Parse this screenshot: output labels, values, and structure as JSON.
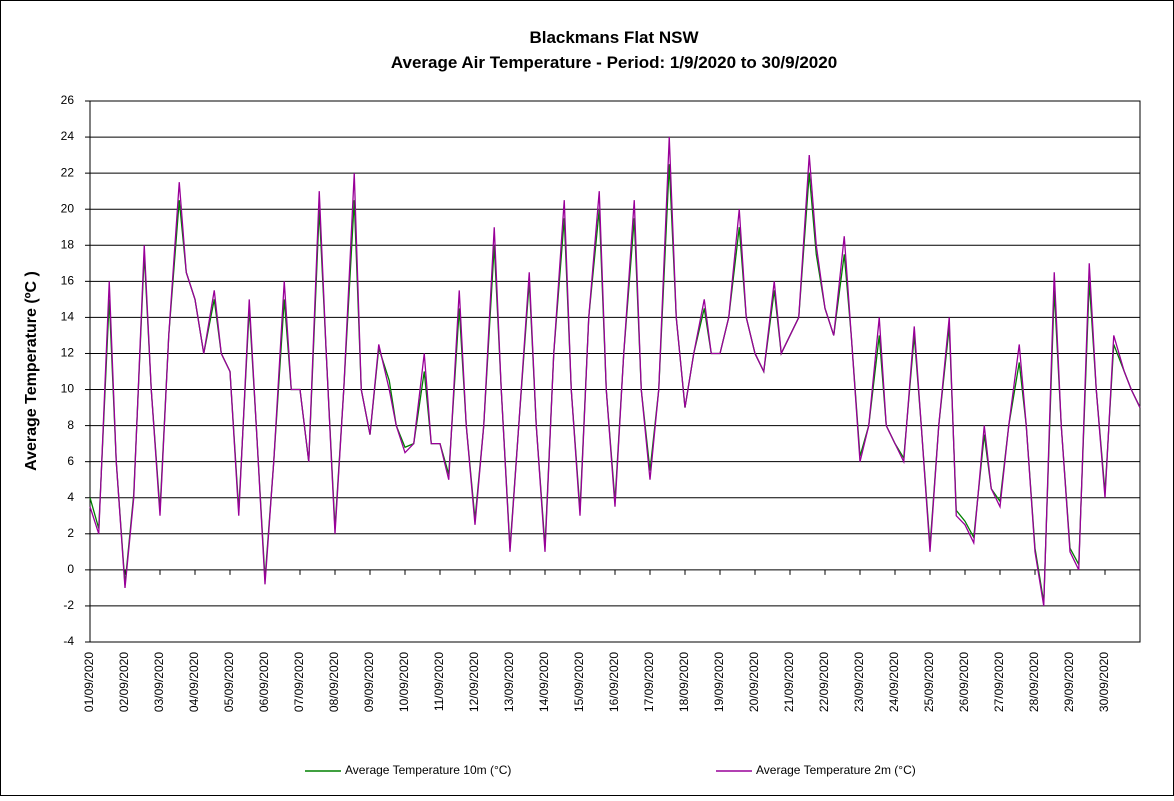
{
  "chart_data": {
    "type": "line",
    "title": "Blackmans Flat NSW",
    "subtitle": "Average Air  Temperature - Period: 1/9/2020 to 30/9/2020",
    "y_label": "Average Temperature (ºC )",
    "grid": true,
    "legend": "bottom",
    "xlim": [
      0,
      30
    ],
    "xticks": [
      {
        "value": 0,
        "label": "01/09/2020"
      },
      {
        "value": 1,
        "label": "02/09/2020"
      },
      {
        "value": 2,
        "label": "03/09/2020"
      },
      {
        "value": 3,
        "label": "04/09/2020"
      },
      {
        "value": 4,
        "label": "05/09/2020"
      },
      {
        "value": 5,
        "label": "06/09/2020"
      },
      {
        "value": 6,
        "label": "07/09/2020"
      },
      {
        "value": 7,
        "label": "08/09/2020"
      },
      {
        "value": 8,
        "label": "09/09/2020"
      },
      {
        "value": 9,
        "label": "10/09/2020"
      },
      {
        "value": 10,
        "label": "11/09/2020"
      },
      {
        "value": 11,
        "label": "12/09/2020"
      },
      {
        "value": 12,
        "label": "13/09/2020"
      },
      {
        "value": 13,
        "label": "14/09/2020"
      },
      {
        "value": 14,
        "label": "15/09/2020"
      },
      {
        "value": 15,
        "label": "16/09/2020"
      },
      {
        "value": 16,
        "label": "17/09/2020"
      },
      {
        "value": 17,
        "label": "18/09/2020"
      },
      {
        "value": 18,
        "label": "19/09/2020"
      },
      {
        "value": 19,
        "label": "20/09/2020"
      },
      {
        "value": 20,
        "label": "21/09/2020"
      },
      {
        "value": 21,
        "label": "22/09/2020"
      },
      {
        "value": 22,
        "label": "23/09/2020"
      },
      {
        "value": 23,
        "label": "24/09/2020"
      },
      {
        "value": 24,
        "label": "25/09/2020"
      },
      {
        "value": 25,
        "label": "26/09/2020"
      },
      {
        "value": 26,
        "label": "27/09/2020"
      },
      {
        "value": 27,
        "label": "28/09/2020"
      },
      {
        "value": 28,
        "label": "29/09/2020"
      },
      {
        "value": 29,
        "label": "30/09/2020"
      }
    ],
    "ylim": [
      -4,
      26
    ],
    "yticks": [
      -4,
      -2,
      0,
      2,
      4,
      6,
      8,
      10,
      12,
      14,
      16,
      18,
      20,
      22,
      24,
      26
    ],
    "x": [
      0,
      0.25,
      0.55,
      0.75,
      1,
      1.25,
      1.55,
      1.75,
      2,
      2.25,
      2.55,
      2.75,
      3,
      3.25,
      3.55,
      3.75,
      4,
      4.25,
      4.55,
      4.75,
      5,
      5.25,
      5.55,
      5.75,
      6,
      6.25,
      6.55,
      6.75,
      7,
      7.25,
      7.55,
      7.75,
      8,
      8.25,
      8.55,
      8.75,
      9,
      9.25,
      9.55,
      9.75,
      10,
      10.25,
      10.55,
      10.75,
      11,
      11.25,
      11.55,
      11.75,
      12,
      12.25,
      12.55,
      12.75,
      13,
      13.25,
      13.55,
      13.75,
      14,
      14.25,
      14.55,
      14.75,
      15,
      15.25,
      15.55,
      15.75,
      16,
      16.25,
      16.55,
      16.75,
      17,
      17.25,
      17.55,
      17.75,
      18,
      18.25,
      18.55,
      18.75,
      19,
      19.25,
      19.55,
      19.75,
      20,
      20.25,
      20.55,
      20.75,
      21,
      21.25,
      21.55,
      21.75,
      22,
      22.25,
      22.55,
      22.75,
      23,
      23.25,
      23.55,
      23.75,
      24,
      24.25,
      24.55,
      24.75,
      25,
      25.25,
      25.55,
      25.75,
      26,
      26.25,
      26.55,
      26.75,
      27,
      27.25,
      27.55,
      27.75,
      28,
      28.25,
      28.55,
      28.75,
      29,
      29.25,
      29.55,
      29.75,
      30
    ],
    "series": [
      {
        "name": "Average Temperature 10m (°C)",
        "color": "#008000",
        "values": [
          4,
          2.3,
          15,
          6,
          -0.8,
          4.2,
          17.5,
          10,
          3.3,
          13,
          20.5,
          16.5,
          15,
          12,
          15,
          12,
          11,
          3.3,
          14.5,
          8,
          -0.5,
          6,
          15,
          10,
          10,
          6,
          20,
          12,
          2.3,
          10,
          20.5,
          10,
          7.5,
          12.3,
          10.5,
          8,
          6.8,
          7,
          11,
          7,
          7,
          5.3,
          14.5,
          8,
          2.8,
          8,
          18,
          10,
          1.2,
          8,
          16,
          8,
          1.3,
          12,
          19.5,
          10,
          3.3,
          14,
          20,
          10,
          3.8,
          12,
          19.5,
          10,
          5.5,
          10,
          22.5,
          14,
          9,
          12,
          14.5,
          12,
          12,
          14,
          19,
          14,
          12,
          11,
          15.5,
          12,
          13,
          14,
          22,
          17.5,
          14.5,
          13,
          17.5,
          13,
          6.3,
          8,
          13,
          8,
          7,
          6.2,
          13,
          8,
          1.3,
          8,
          13.5,
          3.3,
          2.7,
          1.8,
          7.5,
          4.5,
          3.8,
          8,
          11.5,
          8,
          1.2,
          -1.8,
          15.5,
          8,
          1.2,
          0.3,
          16,
          10,
          4.3,
          12.5,
          11,
          10,
          9
        ]
      },
      {
        "name": "Average Temperature 2m (°C)",
        "color": "#990099",
        "values": [
          3.5,
          2,
          16,
          6,
          -1,
          4,
          18,
          10,
          3,
          13,
          21.5,
          16.5,
          15,
          12,
          15.5,
          12,
          11,
          3,
          15,
          8,
          -0.8,
          6,
          16,
          10,
          10,
          6,
          21,
          12,
          2,
          10,
          22,
          10,
          7.5,
          12.5,
          10,
          8,
          6.5,
          7,
          12,
          7,
          7,
          5,
          15.5,
          8,
          2.5,
          8,
          19,
          10,
          1,
          8,
          16.5,
          8,
          1,
          12,
          20.5,
          10,
          3,
          14,
          21,
          10,
          3.5,
          12,
          20.5,
          10,
          5,
          10,
          24,
          14,
          9,
          12,
          15,
          12,
          12,
          14,
          20,
          14,
          12,
          11,
          16,
          12,
          13,
          14,
          23,
          18,
          14.5,
          13,
          18.5,
          13,
          6,
          8,
          14,
          8,
          7,
          6,
          13.5,
          8,
          1,
          8,
          14,
          3,
          2.5,
          1.5,
          8,
          4.5,
          3.5,
          8,
          12.5,
          8,
          1,
          -2,
          16.5,
          8,
          1,
          0,
          17,
          10,
          4,
          13,
          11,
          10,
          9
        ]
      }
    ]
  }
}
